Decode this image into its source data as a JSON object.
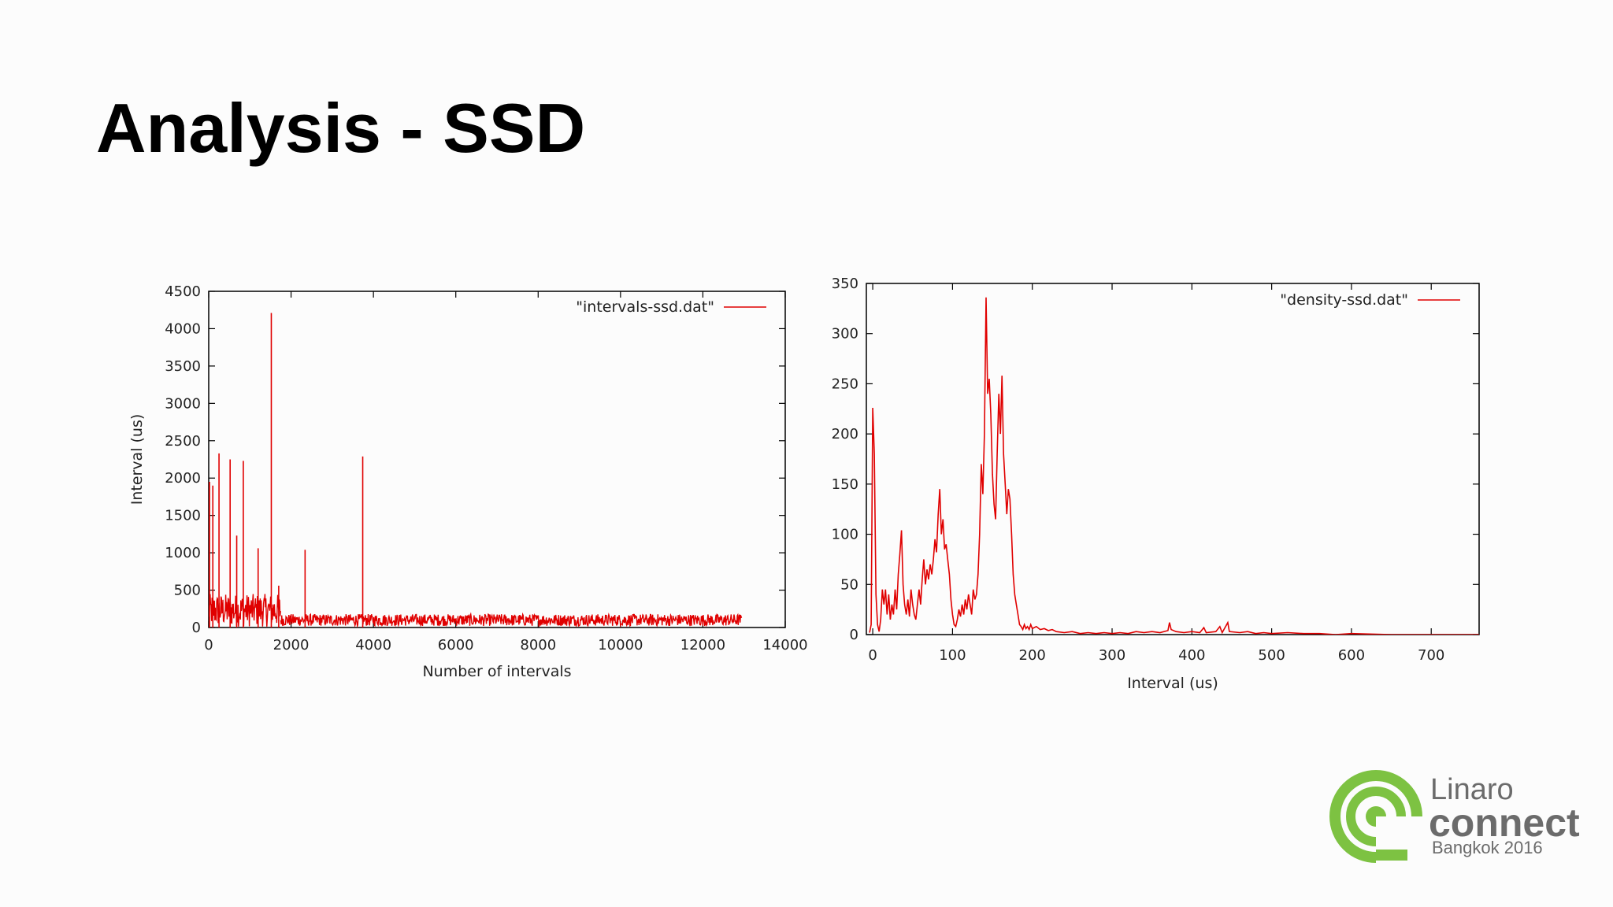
{
  "slide": {
    "title": "Analysis - SSD"
  },
  "logo": {
    "brand": "Linaro",
    "product": "connect",
    "event": "Bangkok 2016",
    "color_green": "#7dc242",
    "color_text": "#6b6b6b"
  },
  "chart_data": [
    {
      "type": "line",
      "xlabel": "Number of intervals",
      "ylabel": "Interval (us)",
      "xlim": [
        0,
        14000
      ],
      "ylim": [
        0,
        4500
      ],
      "x_ticks": [
        0,
        2000,
        4000,
        6000,
        8000,
        10000,
        12000,
        14000
      ],
      "y_ticks": [
        0,
        500,
        1000,
        1500,
        2000,
        2500,
        3000,
        3500,
        4000,
        4500
      ],
      "grid": false,
      "legend_position": "top-right",
      "series_color": "#e00000",
      "series": [
        {
          "name": "\"intervals-ssd.dat\"",
          "points": [
            [
              0,
              120
            ],
            [
              20,
              1950
            ],
            [
              40,
              150
            ],
            [
              100,
              1900
            ],
            [
              140,
              200
            ],
            [
              250,
              2330
            ],
            [
              300,
              180
            ],
            [
              520,
              2250
            ],
            [
              560,
              200
            ],
            [
              680,
              1230
            ],
            [
              720,
              210
            ],
            [
              840,
              2230
            ],
            [
              880,
              220
            ],
            [
              1200,
              1060
            ],
            [
              1240,
              200
            ],
            [
              1520,
              4210
            ],
            [
              1560,
              220
            ],
            [
              1700,
              560
            ],
            [
              1740,
              180
            ],
            [
              2340,
              1040
            ],
            [
              2380,
              150
            ],
            [
              3740,
              2290
            ],
            [
              3780,
              150
            ],
            [
              12950,
              150
            ]
          ],
          "noise_band": [
            {
              "x_from": 0,
              "x_to": 1750,
              "y_low": 10,
              "y_high": 450
            },
            {
              "x_from": 1750,
              "x_to": 12950,
              "y_low": 20,
              "y_high": 180
            }
          ]
        }
      ]
    },
    {
      "type": "line",
      "xlabel": "Interval (us)",
      "ylabel": "",
      "xlim": [
        -8,
        760
      ],
      "ylim": [
        0,
        350
      ],
      "x_ticks": [
        0,
        100,
        200,
        300,
        400,
        500,
        600,
        700
      ],
      "y_ticks": [
        0,
        50,
        100,
        150,
        200,
        250,
        300,
        350
      ],
      "grid": false,
      "legend_position": "top-right",
      "series_color": "#e00000",
      "series": [
        {
          "name": "\"density-ssd.dat\"",
          "points": [
            [
              -4,
              2
            ],
            [
              -2,
              10
            ],
            [
              0,
              226
            ],
            [
              2,
              180
            ],
            [
              4,
              40
            ],
            [
              6,
              10
            ],
            [
              8,
              3
            ],
            [
              10,
              15
            ],
            [
              12,
              45
            ],
            [
              14,
              30
            ],
            [
              16,
              45
            ],
            [
              18,
              20
            ],
            [
              20,
              40
            ],
            [
              22,
              15
            ],
            [
              24,
              30
            ],
            [
              26,
              20
            ],
            [
              28,
              45
            ],
            [
              30,
              25
            ],
            [
              32,
              60
            ],
            [
              34,
              80
            ],
            [
              36,
              104
            ],
            [
              38,
              50
            ],
            [
              40,
              30
            ],
            [
              42,
              20
            ],
            [
              44,
              35
            ],
            [
              46,
              18
            ],
            [
              48,
              45
            ],
            [
              50,
              30
            ],
            [
              52,
              20
            ],
            [
              54,
              15
            ],
            [
              56,
              30
            ],
            [
              58,
              45
            ],
            [
              60,
              30
            ],
            [
              62,
              55
            ],
            [
              64,
              75
            ],
            [
              66,
              50
            ],
            [
              68,
              65
            ],
            [
              70,
              55
            ],
            [
              72,
              70
            ],
            [
              74,
              60
            ],
            [
              76,
              75
            ],
            [
              78,
              95
            ],
            [
              80,
              82
            ],
            [
              82,
              120
            ],
            [
              84,
              145
            ],
            [
              86,
              100
            ],
            [
              88,
              115
            ],
            [
              90,
              85
            ],
            [
              92,
              90
            ],
            [
              94,
              75
            ],
            [
              96,
              60
            ],
            [
              98,
              35
            ],
            [
              100,
              20
            ],
            [
              102,
              10
            ],
            [
              104,
              8
            ],
            [
              106,
              15
            ],
            [
              108,
              25
            ],
            [
              110,
              18
            ],
            [
              112,
              30
            ],
            [
              114,
              20
            ],
            [
              116,
              35
            ],
            [
              118,
              25
            ],
            [
              120,
              40
            ],
            [
              122,
              30
            ],
            [
              124,
              20
            ],
            [
              126,
              45
            ],
            [
              128,
              35
            ],
            [
              130,
              40
            ],
            [
              132,
              60
            ],
            [
              134,
              100
            ],
            [
              136,
              170
            ],
            [
              138,
              140
            ],
            [
              140,
              200
            ],
            [
              142,
              336
            ],
            [
              144,
              240
            ],
            [
              146,
              255
            ],
            [
              148,
              220
            ],
            [
              150,
              160
            ],
            [
              152,
              130
            ],
            [
              154,
              115
            ],
            [
              156,
              180
            ],
            [
              158,
              240
            ],
            [
              160,
              200
            ],
            [
              162,
              258
            ],
            [
              164,
              180
            ],
            [
              166,
              150
            ],
            [
              168,
              120
            ],
            [
              170,
              145
            ],
            [
              172,
              135
            ],
            [
              174,
              100
            ],
            [
              176,
              60
            ],
            [
              178,
              40
            ],
            [
              180,
              30
            ],
            [
              182,
              20
            ],
            [
              184,
              10
            ],
            [
              186,
              8
            ],
            [
              188,
              5
            ],
            [
              190,
              10
            ],
            [
              192,
              6
            ],
            [
              194,
              8
            ],
            [
              196,
              5
            ],
            [
              198,
              10
            ],
            [
              200,
              6
            ],
            [
              205,
              8
            ],
            [
              210,
              5
            ],
            [
              215,
              6
            ],
            [
              220,
              4
            ],
            [
              225,
              5
            ],
            [
              230,
              3
            ],
            [
              240,
              2
            ],
            [
              250,
              3
            ],
            [
              260,
              1
            ],
            [
              270,
              2
            ],
            [
              280,
              1
            ],
            [
              290,
              2
            ],
            [
              300,
              1
            ],
            [
              310,
              2
            ],
            [
              320,
              1
            ],
            [
              330,
              3
            ],
            [
              340,
              2
            ],
            [
              350,
              3
            ],
            [
              360,
              2
            ],
            [
              370,
              4
            ],
            [
              372,
              12
            ],
            [
              374,
              5
            ],
            [
              380,
              3
            ],
            [
              390,
              2
            ],
            [
              400,
              3
            ],
            [
              410,
              2
            ],
            [
              415,
              7
            ],
            [
              418,
              2
            ],
            [
              430,
              3
            ],
            [
              435,
              8
            ],
            [
              438,
              2
            ],
            [
              445,
              12
            ],
            [
              447,
              3
            ],
            [
              460,
              2
            ],
            [
              470,
              3
            ],
            [
              480,
              1
            ],
            [
              490,
              2
            ],
            [
              500,
              1
            ],
            [
              520,
              2
            ],
            [
              540,
              1
            ],
            [
              560,
              1
            ],
            [
              580,
              0
            ],
            [
              600,
              1
            ],
            [
              650,
              0
            ],
            [
              700,
              0
            ],
            [
              760,
              0
            ]
          ]
        }
      ]
    }
  ]
}
